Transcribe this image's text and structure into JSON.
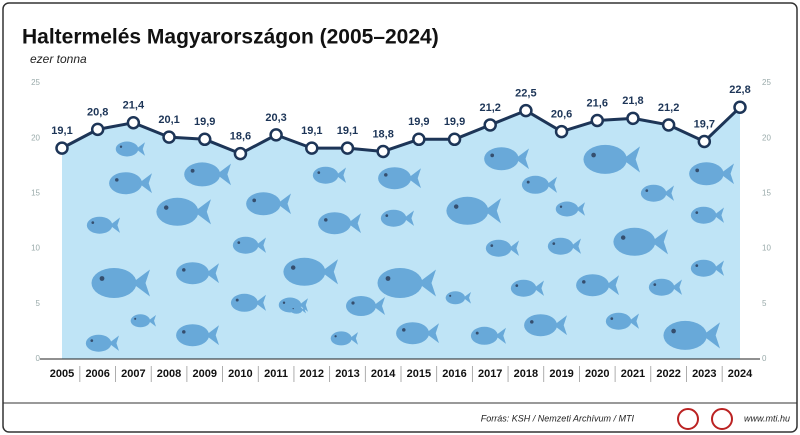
{
  "chart_data": {
    "type": "area",
    "title": "Haltermelés Magyarországon (2005–2024)",
    "subtitle": "ezer tonna",
    "categories": [
      "2005",
      "2006",
      "2007",
      "2008",
      "2009",
      "2010",
      "2011",
      "2012",
      "2013",
      "2014",
      "2015",
      "2016",
      "2017",
      "2018",
      "2019",
      "2020",
      "2021",
      "2022",
      "2023",
      "2024"
    ],
    "values": [
      19.1,
      20.8,
      21.4,
      20.1,
      19.9,
      18.6,
      20.3,
      19.1,
      19.1,
      18.8,
      19.9,
      19.9,
      21.2,
      22.5,
      20.6,
      21.6,
      21.8,
      21.2,
      19.7,
      22.8
    ],
    "value_labels": [
      "19,1",
      "20,8",
      "21,4",
      "20,1",
      "19,9",
      "18,6",
      "20,3",
      "19,1",
      "19,1",
      "18,8",
      "19,9",
      "19,9",
      "21,2",
      "22,5",
      "20,6",
      "21,6",
      "21,8",
      "21,2",
      "19,7",
      "22,8"
    ],
    "color": "#1d3557",
    "fill_color": "#bfe4f6",
    "ylim": [
      0,
      25
    ],
    "yticks": [
      0,
      5,
      10,
      15,
      20,
      25
    ],
    "y2lim": [
      0,
      25
    ],
    "y2ticks": [
      0,
      5,
      10,
      15,
      20,
      25
    ],
    "grid": false,
    "source": "Forrás: KSH / Nemzeti Archívum / MTI",
    "website": "www.mti.hu"
  }
}
